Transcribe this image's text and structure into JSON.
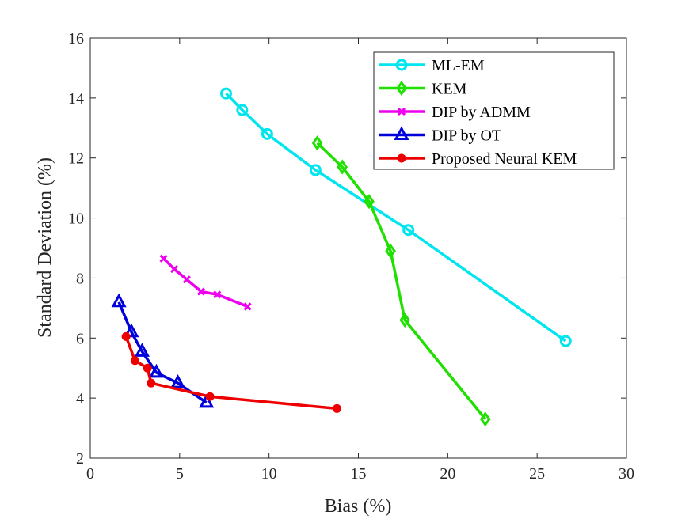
{
  "chart_data": {
    "type": "line",
    "xlabel": "Bias (%)",
    "ylabel": "Standard Deviation (%)",
    "xlim": [
      0,
      30
    ],
    "ylim": [
      2,
      16
    ],
    "xticks": [
      0,
      5,
      10,
      15,
      20,
      25,
      30
    ],
    "yticks": [
      2,
      4,
      6,
      8,
      10,
      12,
      14,
      16
    ],
    "grid": false,
    "legend_position": "top-right",
    "series": [
      {
        "name": "ML-EM",
        "color": "#00e5ee",
        "marker": "circle",
        "points": [
          [
            7.6,
            14.15
          ],
          [
            8.5,
            13.6
          ],
          [
            9.9,
            12.8
          ],
          [
            12.6,
            11.6
          ],
          [
            17.8,
            9.6
          ],
          [
            26.6,
            5.9
          ]
        ]
      },
      {
        "name": "KEM",
        "color": "#1fe000",
        "marker": "diamond",
        "points": [
          [
            12.7,
            12.5
          ],
          [
            14.1,
            11.7
          ],
          [
            15.6,
            10.55
          ],
          [
            16.8,
            8.9
          ],
          [
            17.6,
            6.6
          ],
          [
            22.1,
            3.3
          ]
        ]
      },
      {
        "name": "DIP by ADMM",
        "color": "#ee00ee",
        "marker": "x",
        "points": [
          [
            4.1,
            8.65
          ],
          [
            4.7,
            8.3
          ],
          [
            5.4,
            7.95
          ],
          [
            6.2,
            7.55
          ],
          [
            7.1,
            7.45
          ],
          [
            8.8,
            7.05
          ]
        ]
      },
      {
        "name": "DIP by OT",
        "color": "#0000dd",
        "marker": "triangle",
        "points": [
          [
            1.6,
            7.2
          ],
          [
            2.3,
            6.2
          ],
          [
            2.9,
            5.55
          ],
          [
            3.7,
            4.85
          ],
          [
            4.9,
            4.5
          ],
          [
            6.5,
            3.85
          ]
        ]
      },
      {
        "name": "Proposed Neural KEM",
        "color": "#ee0000",
        "marker": "dot",
        "points": [
          [
            2.0,
            6.05
          ],
          [
            2.5,
            5.25
          ],
          [
            3.2,
            5.0
          ],
          [
            3.4,
            4.5
          ],
          [
            6.7,
            4.05
          ],
          [
            13.8,
            3.65
          ]
        ]
      }
    ]
  }
}
